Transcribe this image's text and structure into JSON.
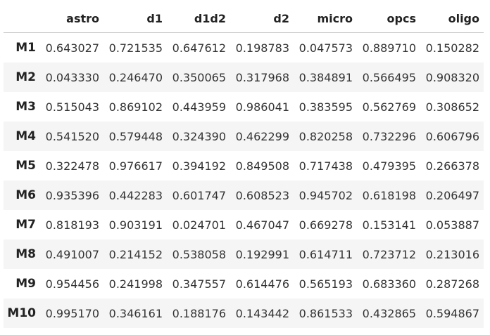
{
  "table": {
    "index_header": "",
    "columns": [
      "astro",
      "d1",
      "d1d2",
      "d2",
      "micro",
      "opcs",
      "oligo"
    ],
    "rows": [
      {
        "label": "M1",
        "values": [
          "0.643027",
          "0.721535",
          "0.647612",
          "0.198783",
          "0.047573",
          "0.889710",
          "0.150282"
        ]
      },
      {
        "label": "M2",
        "values": [
          "0.043330",
          "0.246470",
          "0.350065",
          "0.317968",
          "0.384891",
          "0.566495",
          "0.908320"
        ]
      },
      {
        "label": "M3",
        "values": [
          "0.515043",
          "0.869102",
          "0.443959",
          "0.986041",
          "0.383595",
          "0.562769",
          "0.308652"
        ]
      },
      {
        "label": "M4",
        "values": [
          "0.541520",
          "0.579448",
          "0.324390",
          "0.462299",
          "0.820258",
          "0.732296",
          "0.606796"
        ]
      },
      {
        "label": "M5",
        "values": [
          "0.322478",
          "0.976617",
          "0.394192",
          "0.849508",
          "0.717438",
          "0.479395",
          "0.266378"
        ]
      },
      {
        "label": "M6",
        "values": [
          "0.935396",
          "0.442283",
          "0.601747",
          "0.608523",
          "0.945702",
          "0.618198",
          "0.206497"
        ]
      },
      {
        "label": "M7",
        "values": [
          "0.818193",
          "0.903191",
          "0.024701",
          "0.467047",
          "0.669278",
          "0.153141",
          "0.053887"
        ]
      },
      {
        "label": "M8",
        "values": [
          "0.491007",
          "0.214152",
          "0.538058",
          "0.192991",
          "0.614711",
          "0.723712",
          "0.213016"
        ]
      },
      {
        "label": "M9",
        "values": [
          "0.954456",
          "0.241998",
          "0.347557",
          "0.614476",
          "0.565193",
          "0.683360",
          "0.287268"
        ]
      },
      {
        "label": "M10",
        "values": [
          "0.995170",
          "0.346161",
          "0.188176",
          "0.143442",
          "0.861533",
          "0.432865",
          "0.594867"
        ]
      }
    ]
  },
  "colors": {
    "text": "#222222",
    "stripe": "#f5f5f5",
    "header_rule": "#c8c8c8",
    "background": "#ffffff"
  }
}
